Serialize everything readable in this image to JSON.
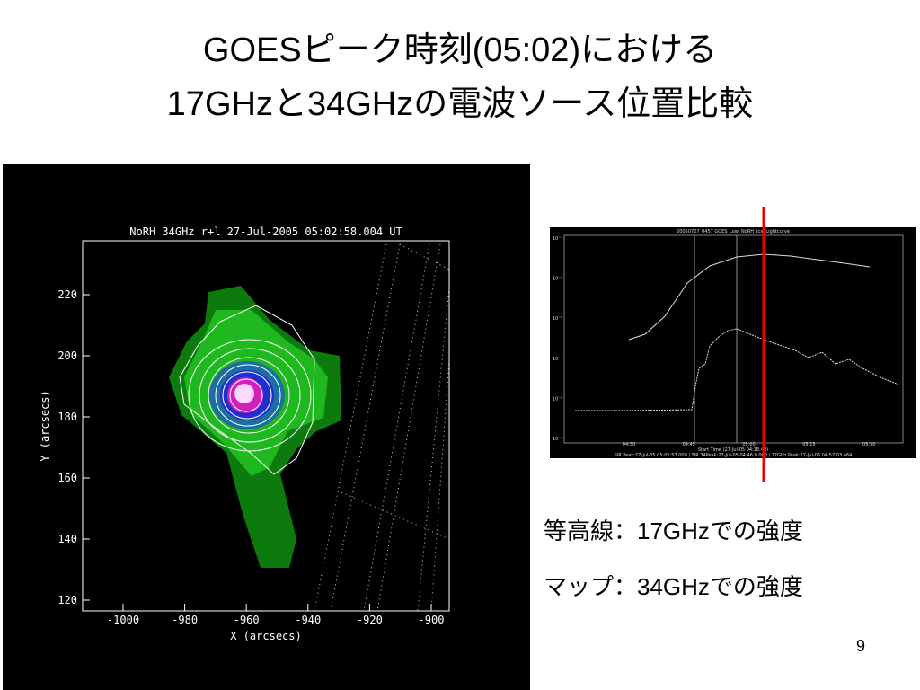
{
  "title": {
    "line1": "GOESピーク時刻(05:02)における",
    "line2": "17GHzと34GHzの電波ソース位置比較"
  },
  "radio_map": {
    "title": "NoRH 34GHz r+l 27-Jul-2005 05:02:58.004 UT",
    "x_label": "X (arcsecs)",
    "y_label": "Y (arcsecs)",
    "xticks": [
      -1000,
      -980,
      -960,
      -940,
      -920,
      -900
    ],
    "yticks": [
      120,
      140,
      160,
      180,
      200,
      220
    ]
  },
  "lightcurve": {
    "title": "20050727_0457 GOES_Low, NoRH_tcx, Lightcurve",
    "yticks": [
      "10⁻⁴",
      "10⁻⁵",
      "10⁻⁶",
      "10⁻⁷",
      "10⁻⁸",
      "10⁻⁹"
    ],
    "xticks": [
      "04:30",
      "04:45",
      "05:00",
      "05:15",
      "05:30"
    ],
    "x_label": "Start Time (27-Jul-05 04:18:40)",
    "footer": "SIR Peak:27-Jul-05 05:02:57.000 / SIR 34Peak:27-Jul-05 04:46:0.000 / 17GHz Peak:27-Jul-05 04:57:03.464"
  },
  "notes": [
    "等高線：17GHzでの強度",
    "マップ：34GHzでの強度"
  ],
  "page_number": "9"
}
